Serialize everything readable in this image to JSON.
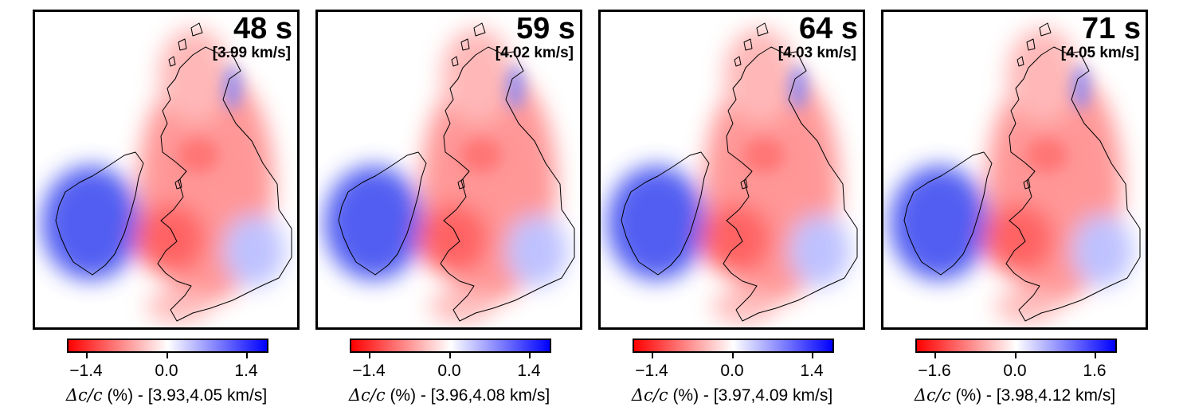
{
  "panels": [
    {
      "period": "48 s",
      "ref_velocity": "[3.99 km/s]",
      "ticks": [
        "−1.4",
        "0.0",
        "1.4"
      ],
      "unit_label": "(%) - [3.93,4.05 km/s]"
    },
    {
      "period": "59 s",
      "ref_velocity": "[4.02 km/s]",
      "ticks": [
        "−1.4",
        "0.0",
        "1.4"
      ],
      "unit_label": "(%) - [3.96,4.08 km/s]"
    },
    {
      "period": "64 s",
      "ref_velocity": "[4.03 km/s]",
      "ticks": [
        "−1.4",
        "0.0",
        "1.4"
      ],
      "unit_label": "(%) - [3.97,4.09 km/s]"
    },
    {
      "period": "71 s",
      "ref_velocity": "[4.05 km/s]",
      "ticks": [
        "−1.6",
        "0.0",
        "1.6"
      ],
      "unit_label": "(%) - [3.98,4.12 km/s]"
    }
  ],
  "symbol": "Δc/c",
  "colors": {
    "slow": "#ff0000",
    "neutral": "#ffffff",
    "fast": "#0000ff",
    "frame": "#000000"
  }
}
